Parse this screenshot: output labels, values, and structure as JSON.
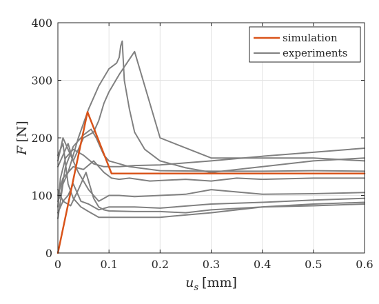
{
  "chart_data": {
    "type": "line",
    "xlabel": {
      "symbol": "u",
      "subscript": "s",
      "unit": "[mm]"
    },
    "ylabel": {
      "symbol": "F",
      "unit": "[N]"
    },
    "xlim": [
      0,
      0.6
    ],
    "ylim": [
      0,
      400
    ],
    "xticks": [
      0,
      0.1,
      0.2,
      0.3,
      0.4,
      0.5,
      0.6
    ],
    "xtick_labels": [
      "0",
      "0.1",
      "0.2",
      "0.3",
      "0.4",
      "0.5",
      "0.6"
    ],
    "yticks": [
      0,
      100,
      200,
      300,
      400
    ],
    "ytick_labels": [
      "0",
      "100",
      "200",
      "300",
      "400"
    ],
    "grid": true,
    "legend_position": "top-right",
    "colors": {
      "simulation": "#d95319",
      "experiments": "#808080",
      "grid": "#e3e3e3",
      "axis": "#262626"
    },
    "series": [
      {
        "name": "simulation",
        "role": "simulation",
        "x": [
          0,
          0.058,
          0.105,
          0.6
        ],
        "y": [
          0,
          245,
          138,
          138
        ]
      },
      {
        "name": "experiments",
        "role": "experiment",
        "x": [
          0,
          0.005,
          0.015,
          0.03,
          0.05,
          0.07,
          0.09,
          0.1,
          0.12,
          0.15,
          0.2,
          0.3,
          0.4,
          0.5,
          0.6
        ],
        "y": [
          80,
          130,
          165,
          180,
          170,
          155,
          150,
          150,
          150,
          152,
          153,
          160,
          168,
          175,
          182
        ]
      },
      {
        "name": "",
        "role": "experiment",
        "x": [
          0,
          0.005,
          0.015,
          0.03,
          0.05,
          0.065,
          0.075,
          0.085,
          0.09,
          0.1,
          0.12,
          0.14,
          0.2,
          0.3,
          0.4,
          0.5,
          0.6
        ],
        "y": [
          90,
          100,
          150,
          185,
          205,
          215,
          200,
          180,
          170,
          160,
          155,
          150,
          143,
          142,
          142,
          143,
          142
        ]
      },
      {
        "name": "",
        "role": "experiment",
        "x": [
          0,
          0.01,
          0.02,
          0.03,
          0.04,
          0.05,
          0.07,
          0.08,
          0.09,
          0.1,
          0.12,
          0.15,
          0.2,
          0.3,
          0.4,
          0.5,
          0.6
        ],
        "y": [
          150,
          170,
          190,
          160,
          180,
          200,
          210,
          230,
          260,
          280,
          310,
          350,
          200,
          165,
          165,
          165,
          160
        ]
      },
      {
        "name": "",
        "role": "experiment",
        "x": [
          0,
          0.01,
          0.02,
          0.04,
          0.06,
          0.08,
          0.1,
          0.115,
          0.12,
          0.123,
          0.126,
          0.13,
          0.14,
          0.15,
          0.17,
          0.2,
          0.25,
          0.3,
          0.4,
          0.5,
          0.6
        ],
        "y": [
          60,
          120,
          140,
          200,
          250,
          290,
          320,
          330,
          340,
          360,
          368,
          300,
          250,
          210,
          180,
          160,
          148,
          140,
          150,
          160,
          165
        ]
      },
      {
        "name": "",
        "role": "experiment",
        "x": [
          0,
          0.01,
          0.03,
          0.05,
          0.07,
          0.09,
          0.105,
          0.12,
          0.14,
          0.18,
          0.25,
          0.3,
          0.35,
          0.4,
          0.5,
          0.6
        ],
        "y": [
          100,
          130,
          150,
          145,
          160,
          140,
          130,
          128,
          130,
          125,
          128,
          125,
          130,
          128,
          130,
          130
        ]
      },
      {
        "name": "",
        "role": "experiment",
        "x": [
          0,
          0.01,
          0.02,
          0.04,
          0.06,
          0.07,
          0.08,
          0.09,
          0.1,
          0.12,
          0.15,
          0.2,
          0.25,
          0.3,
          0.4,
          0.5,
          0.6
        ],
        "y": [
          160,
          200,
          180,
          140,
          110,
          100,
          90,
          95,
          100,
          100,
          98,
          100,
          102,
          110,
          102,
          103,
          105
        ]
      },
      {
        "name": "",
        "role": "experiment",
        "x": [
          0,
          0.01,
          0.02,
          0.03,
          0.045,
          0.06,
          0.08,
          0.1,
          0.15,
          0.2,
          0.3,
          0.4,
          0.5,
          0.6
        ],
        "y": [
          110,
          90,
          100,
          120,
          90,
          85,
          75,
          80,
          80,
          78,
          85,
          88,
          92,
          95
        ]
      },
      {
        "name": "",
        "role": "experiment",
        "x": [
          0,
          0.01,
          0.02,
          0.03,
          0.045,
          0.06,
          0.08,
          0.1,
          0.15,
          0.2,
          0.3,
          0.4,
          0.5,
          0.6
        ],
        "y": [
          170,
          190,
          120,
          95,
          80,
          72,
          62,
          62,
          62,
          62,
          70,
          80,
          85,
          88
        ]
      },
      {
        "name": "",
        "role": "experiment",
        "x": [
          0,
          0.01,
          0.025,
          0.04,
          0.055,
          0.07,
          0.08,
          0.09,
          0.1,
          0.15,
          0.2,
          0.25,
          0.3,
          0.4,
          0.5,
          0.6
        ],
        "y": [
          70,
          90,
          82,
          110,
          140,
          95,
          80,
          75,
          73,
          72,
          72,
          70,
          75,
          80,
          82,
          85
        ]
      }
    ]
  }
}
